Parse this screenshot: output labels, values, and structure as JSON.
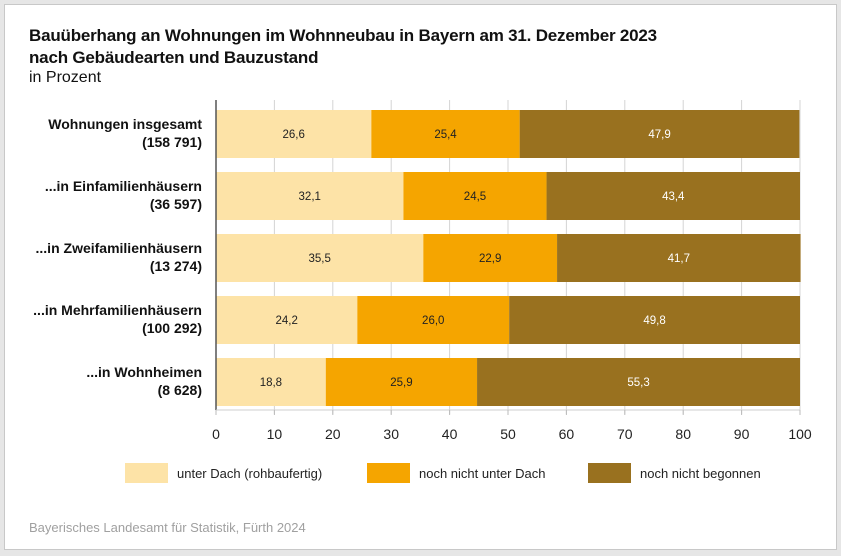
{
  "chart_data": {
    "type": "bar",
    "orientation": "horizontal",
    "stacked": true,
    "title": "Bauüberhang an Wohnungen im Wohnneubau in Bayern am 31. Dezember 2023 nach Gebäudearten und Bauzustand",
    "title_lines": [
      "Bauüberhang an Wohnungen im Wohnneubau in Bayern am 31. Dezember 2023",
      "nach Gebäudearten und Bauzustand"
    ],
    "subtitle": "in Prozent",
    "categories": [
      {
        "line1": "Wohnungen insgesamt",
        "line2": "(158 791)"
      },
      {
        "line1": "...in Einfamilienhäusern",
        "line2": "(36 597)"
      },
      {
        "line1": "...in Zweifamilienhäusern",
        "line2": "(13 274)"
      },
      {
        "line1": "...in Mehrfamilienhäusern",
        "line2": "(100 292)"
      },
      {
        "line1": "...in Wohnheimen",
        "line2": "(8 628)"
      }
    ],
    "series": [
      {
        "name": "unter Dach (rohbaufertig)",
        "color": "#fde3a7",
        "label_color": "#222222",
        "values": [
          26.6,
          32.1,
          35.5,
          24.2,
          18.8
        ],
        "labels": [
          "26,6",
          "32,1",
          "35,5",
          "24,2",
          "18,8"
        ]
      },
      {
        "name": "noch nicht unter Dach",
        "color": "#f5a500",
        "label_color": "#222222",
        "values": [
          25.4,
          24.5,
          22.9,
          26.0,
          25.9
        ],
        "labels": [
          "25,4",
          "24,5",
          "22,9",
          "26,0",
          "25,9"
        ]
      },
      {
        "name": "noch nicht begonnen",
        "color": "#99711f",
        "label_color": "#ffffff",
        "values": [
          47.9,
          43.4,
          41.7,
          49.8,
          55.3
        ],
        "labels": [
          "47,9",
          "43,4",
          "41,7",
          "49,8",
          "55,3"
        ]
      }
    ],
    "xlim": [
      0,
      100
    ],
    "xticks": [
      0,
      10,
      20,
      30,
      40,
      50,
      60,
      70,
      80,
      90,
      100
    ],
    "xlabel": "",
    "ylabel": "",
    "grid": true,
    "legend_position": "bottom"
  },
  "source": "Bayerisches Landesamt für Statistik, Fürth 2024"
}
